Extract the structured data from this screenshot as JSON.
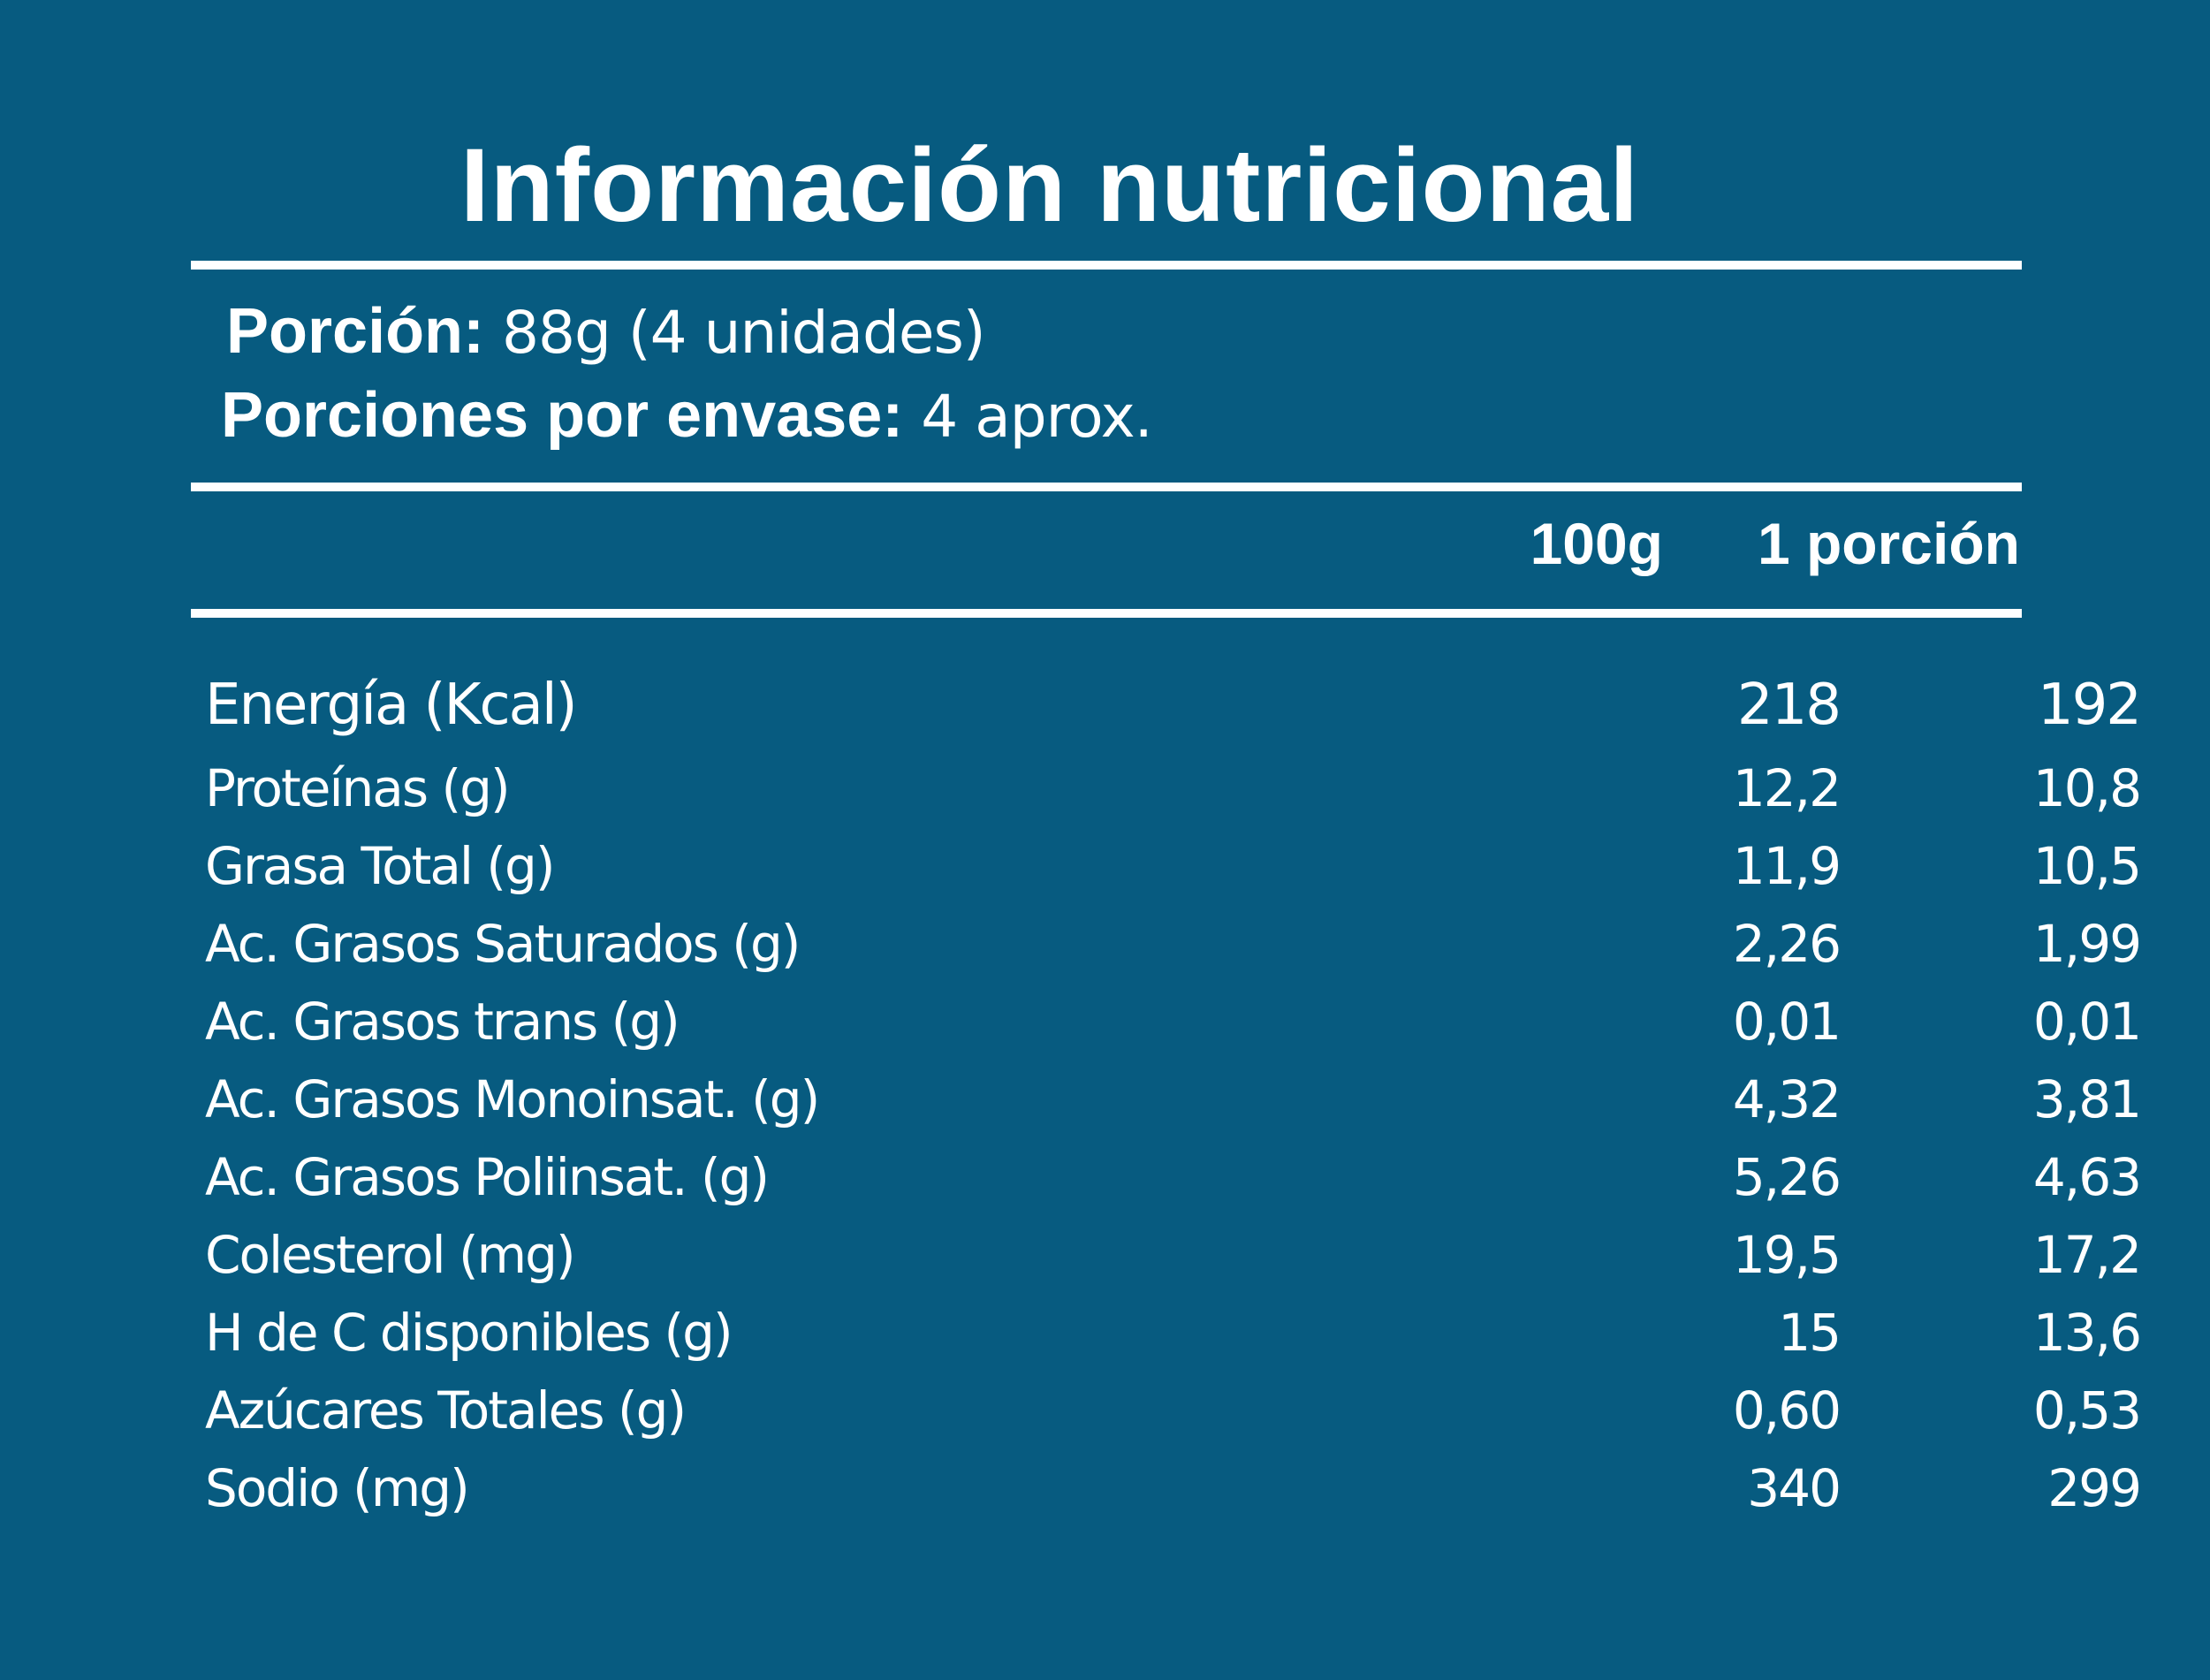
{
  "title": "Información nutricional",
  "serving": {
    "portion_label": "Porción:",
    "portion_value": "88g (4 unidades)",
    "per_container_label": "Porciones por envase:",
    "per_container_value": "4 aprox."
  },
  "columns": {
    "per_100": "100g",
    "per_portion": "1 porción"
  },
  "rows": [
    {
      "name": "Energía (Kcal)",
      "per_100": "218",
      "per_portion": "192"
    },
    {
      "name": "Proteínas (g)",
      "per_100": "12,2",
      "per_portion": "10,8"
    },
    {
      "name": "Grasa Total (g)",
      "per_100": "11,9",
      "per_portion": "10,5"
    },
    {
      "name": "Ac. Grasos Saturados (g)",
      "per_100": "2,26",
      "per_portion": "1,99"
    },
    {
      "name": "Ac. Grasos trans (g)",
      "per_100": "0,01",
      "per_portion": "0,01"
    },
    {
      "name": "Ac. Grasos Monoinsat. (g)",
      "per_100": "4,32",
      "per_portion": "3,81"
    },
    {
      "name": "Ac. Grasos Poliinsat. (g)",
      "per_100": "5,26",
      "per_portion": "4,63"
    },
    {
      "name": "Colesterol (mg)",
      "per_100": "19,5",
      "per_portion": "17,2"
    },
    {
      "name": "H de C disponibles (g)",
      "per_100": "15",
      "per_portion": "13,6"
    },
    {
      "name": "Azúcares Totales (g)",
      "per_100": "0,60",
      "per_portion": "0,53"
    },
    {
      "name": "Sodio (mg)",
      "per_100": "340",
      "per_portion": "299"
    }
  ],
  "colors": {
    "background": "#075b80",
    "text": "#ffffff"
  }
}
